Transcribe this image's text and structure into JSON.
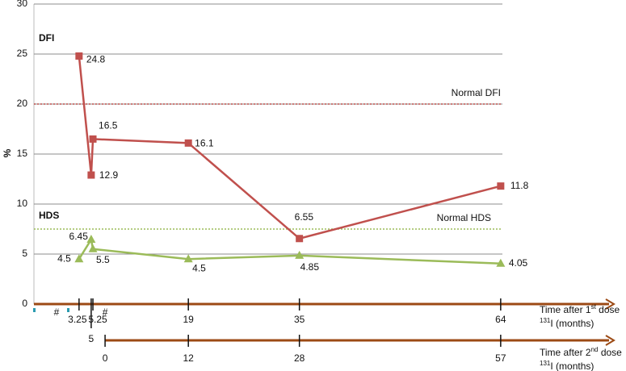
{
  "chart_data": {
    "type": "line",
    "y_label": "%",
    "ylim": [
      0,
      30
    ],
    "yticks": [
      0,
      5,
      10,
      15,
      20,
      25,
      30
    ],
    "grid": true,
    "xlim": [
      -3.25,
      64.25
    ],
    "xticks": [
      3.25,
      5,
      5.25,
      19,
      35,
      64
    ],
    "x_label_parts": [
      [
        "Time after 1",
        "st",
        " dose"
      ],
      [
        "131",
        "I  (months)"
      ]
    ],
    "x2lim": [
      -10.25,
      57.25
    ],
    "x2ticks": [
      0,
      12,
      28,
      57
    ],
    "x2_label_parts": [
      [
        "Time after 2",
        "nd",
        " dose"
      ],
      [
        "131",
        "I  (months)"
      ]
    ],
    "axis_color": "#9c4a14",
    "series": [
      {
        "name": "DFI",
        "color": "#c0504d",
        "marker": "square",
        "x": [
          3.25,
          5,
          5.25,
          19,
          35,
          64
        ],
        "values": [
          24.8,
          12.9,
          16.5,
          16.1,
          6.55,
          11.8
        ]
      },
      {
        "name": "HDS",
        "color": "#9bbb59",
        "marker": "triangle",
        "x": [
          3.25,
          5,
          5.25,
          19,
          35,
          64
        ],
        "values": [
          4.5,
          6.45,
          5.5,
          4.5,
          4.85,
          4.05
        ]
      }
    ],
    "reference_lines": [
      {
        "label": "Normal DFI",
        "value": 20,
        "color": "#c0504d"
      },
      {
        "label": "Normal HDS",
        "value": 7.5,
        "color": "#9bbb59"
      }
    ],
    "dose_markers": [
      {
        "x": 0,
        "label": "#"
      },
      {
        "x": 7,
        "label": "#"
      }
    ]
  }
}
